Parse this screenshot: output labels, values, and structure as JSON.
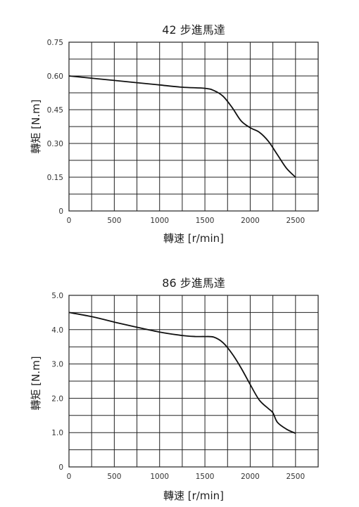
{
  "chart_data": [
    {
      "type": "line",
      "title": "42 步進馬達",
      "xlabel": "轉速 [r/min]",
      "ylabel": "轉矩 [N.m]",
      "xlim": [
        0,
        2750
      ],
      "ylim": [
        0,
        0.75
      ],
      "grid": true,
      "x_ticks": [
        "0",
        "500",
        "1000",
        "1500",
        "2000",
        "2500"
      ],
      "y_ticks": [
        "0",
        "0.15",
        "0.30",
        "0.45",
        "0.60",
        "0.75"
      ],
      "series": [
        {
          "x": [
            0,
            250,
            500,
            750,
            1000,
            1250,
            1500,
            1600,
            1700,
            1800,
            1900,
            2000,
            2100,
            2200,
            2300,
            2400,
            2500
          ],
          "y": [
            0.6,
            0.59,
            0.58,
            0.57,
            0.56,
            0.55,
            0.545,
            0.535,
            0.51,
            0.46,
            0.4,
            0.37,
            0.35,
            0.31,
            0.25,
            0.19,
            0.15
          ]
        }
      ]
    },
    {
      "type": "line",
      "title": "86 步進馬達",
      "xlabel": "轉速 [r/min]",
      "ylabel": "轉矩 [N.m]",
      "xlim": [
        0,
        2750
      ],
      "ylim": [
        0,
        5.0
      ],
      "grid": true,
      "x_ticks": [
        "0",
        "500",
        "1000",
        "1500",
        "2000",
        "2500"
      ],
      "y_ticks": [
        "0",
        "1.0",
        "2.0",
        "3.0",
        "4.0",
        "5.0"
      ],
      "series": [
        {
          "x": [
            0,
            250,
            500,
            750,
            1000,
            1250,
            1400,
            1500,
            1600,
            1700,
            1800,
            1900,
            2000,
            2100,
            2200,
            2250,
            2300,
            2400,
            2500
          ],
          "y": [
            4.5,
            4.38,
            4.22,
            4.07,
            3.93,
            3.83,
            3.8,
            3.8,
            3.78,
            3.62,
            3.3,
            2.88,
            2.4,
            1.95,
            1.7,
            1.58,
            1.3,
            1.1,
            0.98
          ]
        }
      ]
    }
  ]
}
